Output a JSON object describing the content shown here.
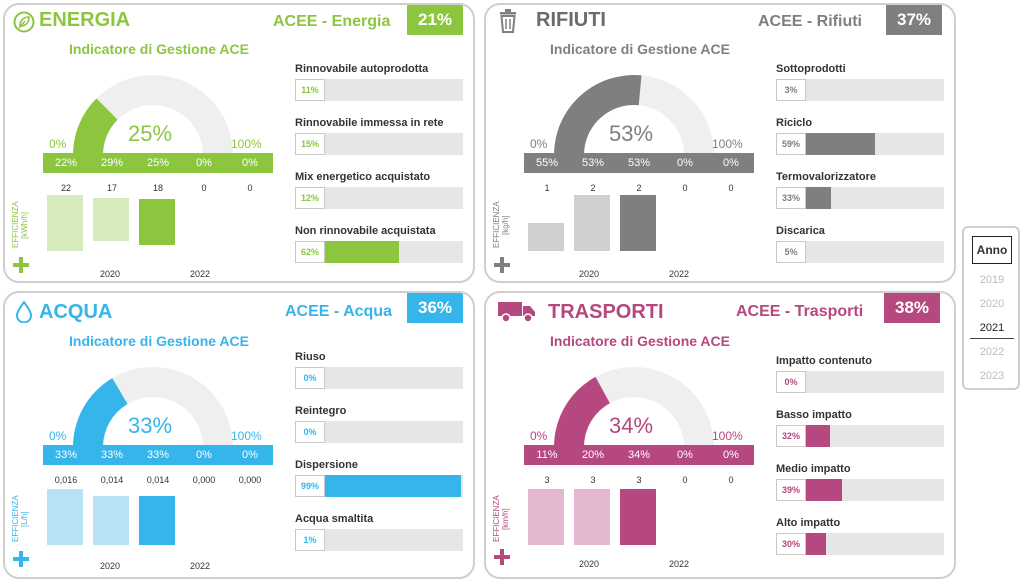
{
  "colors": {
    "energia": "#8cc63f",
    "energia_light": "#d6ebbd",
    "rifiuti": "#7f7f7f",
    "rifiuti_light": "#cfcfcf",
    "acqua": "#35b5e9",
    "acqua_light": "#b7e3f6",
    "trasporti": "#b5487e",
    "trasporti_light": "#e3b7cd",
    "gauge_bg": "#efefef",
    "track": "#e6e6e6"
  },
  "cards": {
    "energia": {
      "title": "ENERGIA",
      "icon": "leaf-icon",
      "acee_label": "ACEE - Energia",
      "acee_pct": "21%",
      "subtitle": "Indicatore di Gestione ACE",
      "gauge": {
        "min": "0%",
        "max": "100%",
        "value_label": "25%",
        "value": 0.25
      },
      "pct_strip": [
        "22%",
        "29%",
        "25%",
        "0%",
        "0%"
      ],
      "eff_values": [
        "22",
        "17",
        "18",
        "0",
        "0"
      ],
      "eff_numeric": [
        22,
        17,
        18,
        0,
        0
      ],
      "eff_label": "EFFICIENZA [kWh/h]",
      "years_axis": [
        "2020",
        "2022"
      ],
      "metrics": [
        {
          "label": "Rinnovabile autoprodotta",
          "value_label": "11%",
          "value": 0.11
        },
        {
          "label": "Rinnovabile immessa in rete",
          "value_label": "15%",
          "value": 0.15
        },
        {
          "label": "Mix energetico acquistato",
          "value_label": "12%",
          "value": 0.12
        },
        {
          "label": "Non rinnovabile acquistata",
          "value_label": "62%",
          "value": 0.62
        }
      ]
    },
    "rifiuti": {
      "title": "RIFIUTI",
      "icon": "trash-icon",
      "acee_label": "ACEE - Rifiuti",
      "acee_pct": "37%",
      "subtitle": "Indicatore di Gestione ACE",
      "gauge": {
        "min": "0%",
        "max": "100%",
        "value_label": "53%",
        "value": 0.53
      },
      "pct_strip": [
        "55%",
        "53%",
        "53%",
        "0%",
        "0%"
      ],
      "eff_values": [
        "1",
        "2",
        "2",
        "0",
        "0"
      ],
      "eff_numeric": [
        1,
        2,
        2,
        0,
        0
      ],
      "eff_label": "EFFICIENZA [kg/h]",
      "years_axis": [
        "2020",
        "2022"
      ],
      "metrics": [
        {
          "label": "Sottoprodotti",
          "value_label": "3%",
          "value": 0.03
        },
        {
          "label": "Riciclo",
          "value_label": "59%",
          "value": 0.59
        },
        {
          "label": "Termovalorizzatore",
          "value_label": "33%",
          "value": 0.33
        },
        {
          "label": "Discarica",
          "value_label": "5%",
          "value": 0.05
        }
      ]
    },
    "acqua": {
      "title": "ACQUA",
      "icon": "water-drop-icon",
      "acee_label": "ACEE - Acqua",
      "acee_pct": "36%",
      "subtitle": "Indicatore di Gestione ACE",
      "gauge": {
        "min": "0%",
        "max": "100%",
        "value_label": "33%",
        "value": 0.33
      },
      "pct_strip": [
        "33%",
        "33%",
        "33%",
        "0%",
        "0%"
      ],
      "eff_values": [
        "0,016",
        "0,014",
        "0,014",
        "0,000",
        "0,000"
      ],
      "eff_numeric": [
        0.016,
        0.014,
        0.014,
        0,
        0
      ],
      "eff_label": "EFFICIENZA [L/h]",
      "years_axis": [
        "2020",
        "2022"
      ],
      "metrics": [
        {
          "label": "Riuso",
          "value_label": "0%",
          "value": 0
        },
        {
          "label": "Reintegro",
          "value_label": "0%",
          "value": 0
        },
        {
          "label": "Dispersione",
          "value_label": "99%",
          "value": 0.99
        },
        {
          "label": "Acqua smaltita",
          "value_label": "1%",
          "value": 0.01
        }
      ]
    },
    "trasporti": {
      "title": "TRASPORTI",
      "icon": "truck-icon",
      "acee_label": "ACEE - Trasporti",
      "acee_pct": "38%",
      "subtitle": "Indicatore di Gestione ACE",
      "gauge": {
        "min": "0%",
        "max": "100%",
        "value_label": "34%",
        "value": 0.34
      },
      "pct_strip": [
        "11%",
        "20%",
        "34%",
        "0%",
        "0%"
      ],
      "eff_values": [
        "3",
        "3",
        "3",
        "0",
        "0"
      ],
      "eff_numeric": [
        3,
        3,
        3,
        0,
        0
      ],
      "eff_label": "EFFICIENZA [km/h]",
      "years_axis": [
        "2020",
        "2022"
      ],
      "metrics": [
        {
          "label": "Impatto contenuto",
          "value_label": "0%",
          "value": 0
        },
        {
          "label": "Basso impatto",
          "value_label": "32%",
          "value": 0.32
        },
        {
          "label": "Medio impatto",
          "value_label": "39%",
          "value": 0.39
        },
        {
          "label": "Alto impatto",
          "value_label": "30%",
          "value": 0.3
        }
      ]
    }
  },
  "slicer": {
    "title": "Anno",
    "years": [
      "2019",
      "2020",
      "2021",
      "2022",
      "2023"
    ],
    "selected": "2021"
  }
}
